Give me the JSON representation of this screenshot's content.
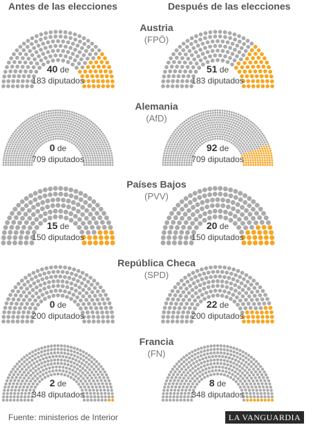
{
  "header": {
    "before_label": "Antes de las elecciones",
    "after_label": "Después de las elecciones"
  },
  "colors": {
    "seat_other": "#aaaaaa",
    "seat_party": "#f5a623"
  },
  "chart_data": {
    "type": "parliament",
    "categories": [
      "Antes de las elecciones",
      "Después de las elecciones"
    ],
    "countries": [
      {
        "name": "Austria",
        "party": "(FPÖ)",
        "total": 183,
        "total_label": "183 diputados",
        "before": 40,
        "after": 51
      },
      {
        "name": "Alemania",
        "party": "(AfD)",
        "total": 709,
        "total_label": "709 diputados",
        "before": 0,
        "after": 92
      },
      {
        "name": "Países Bajos",
        "party": "(PVV)",
        "total": 150,
        "total_label": "150 diputados",
        "before": 15,
        "after": 20
      },
      {
        "name": "República Checa",
        "party": "(SPD)",
        "total": 200,
        "total_label": "200 diputados",
        "before": 0,
        "after": 22
      },
      {
        "name": "Francia",
        "party": "(FN)",
        "total": 348,
        "total_label": "348 diputados",
        "before": 2,
        "after": 8
      }
    ],
    "de_word": "de"
  },
  "footer": {
    "source": "Fuente: ministerios de Interior",
    "brand": "LA VANGUARDIA"
  }
}
